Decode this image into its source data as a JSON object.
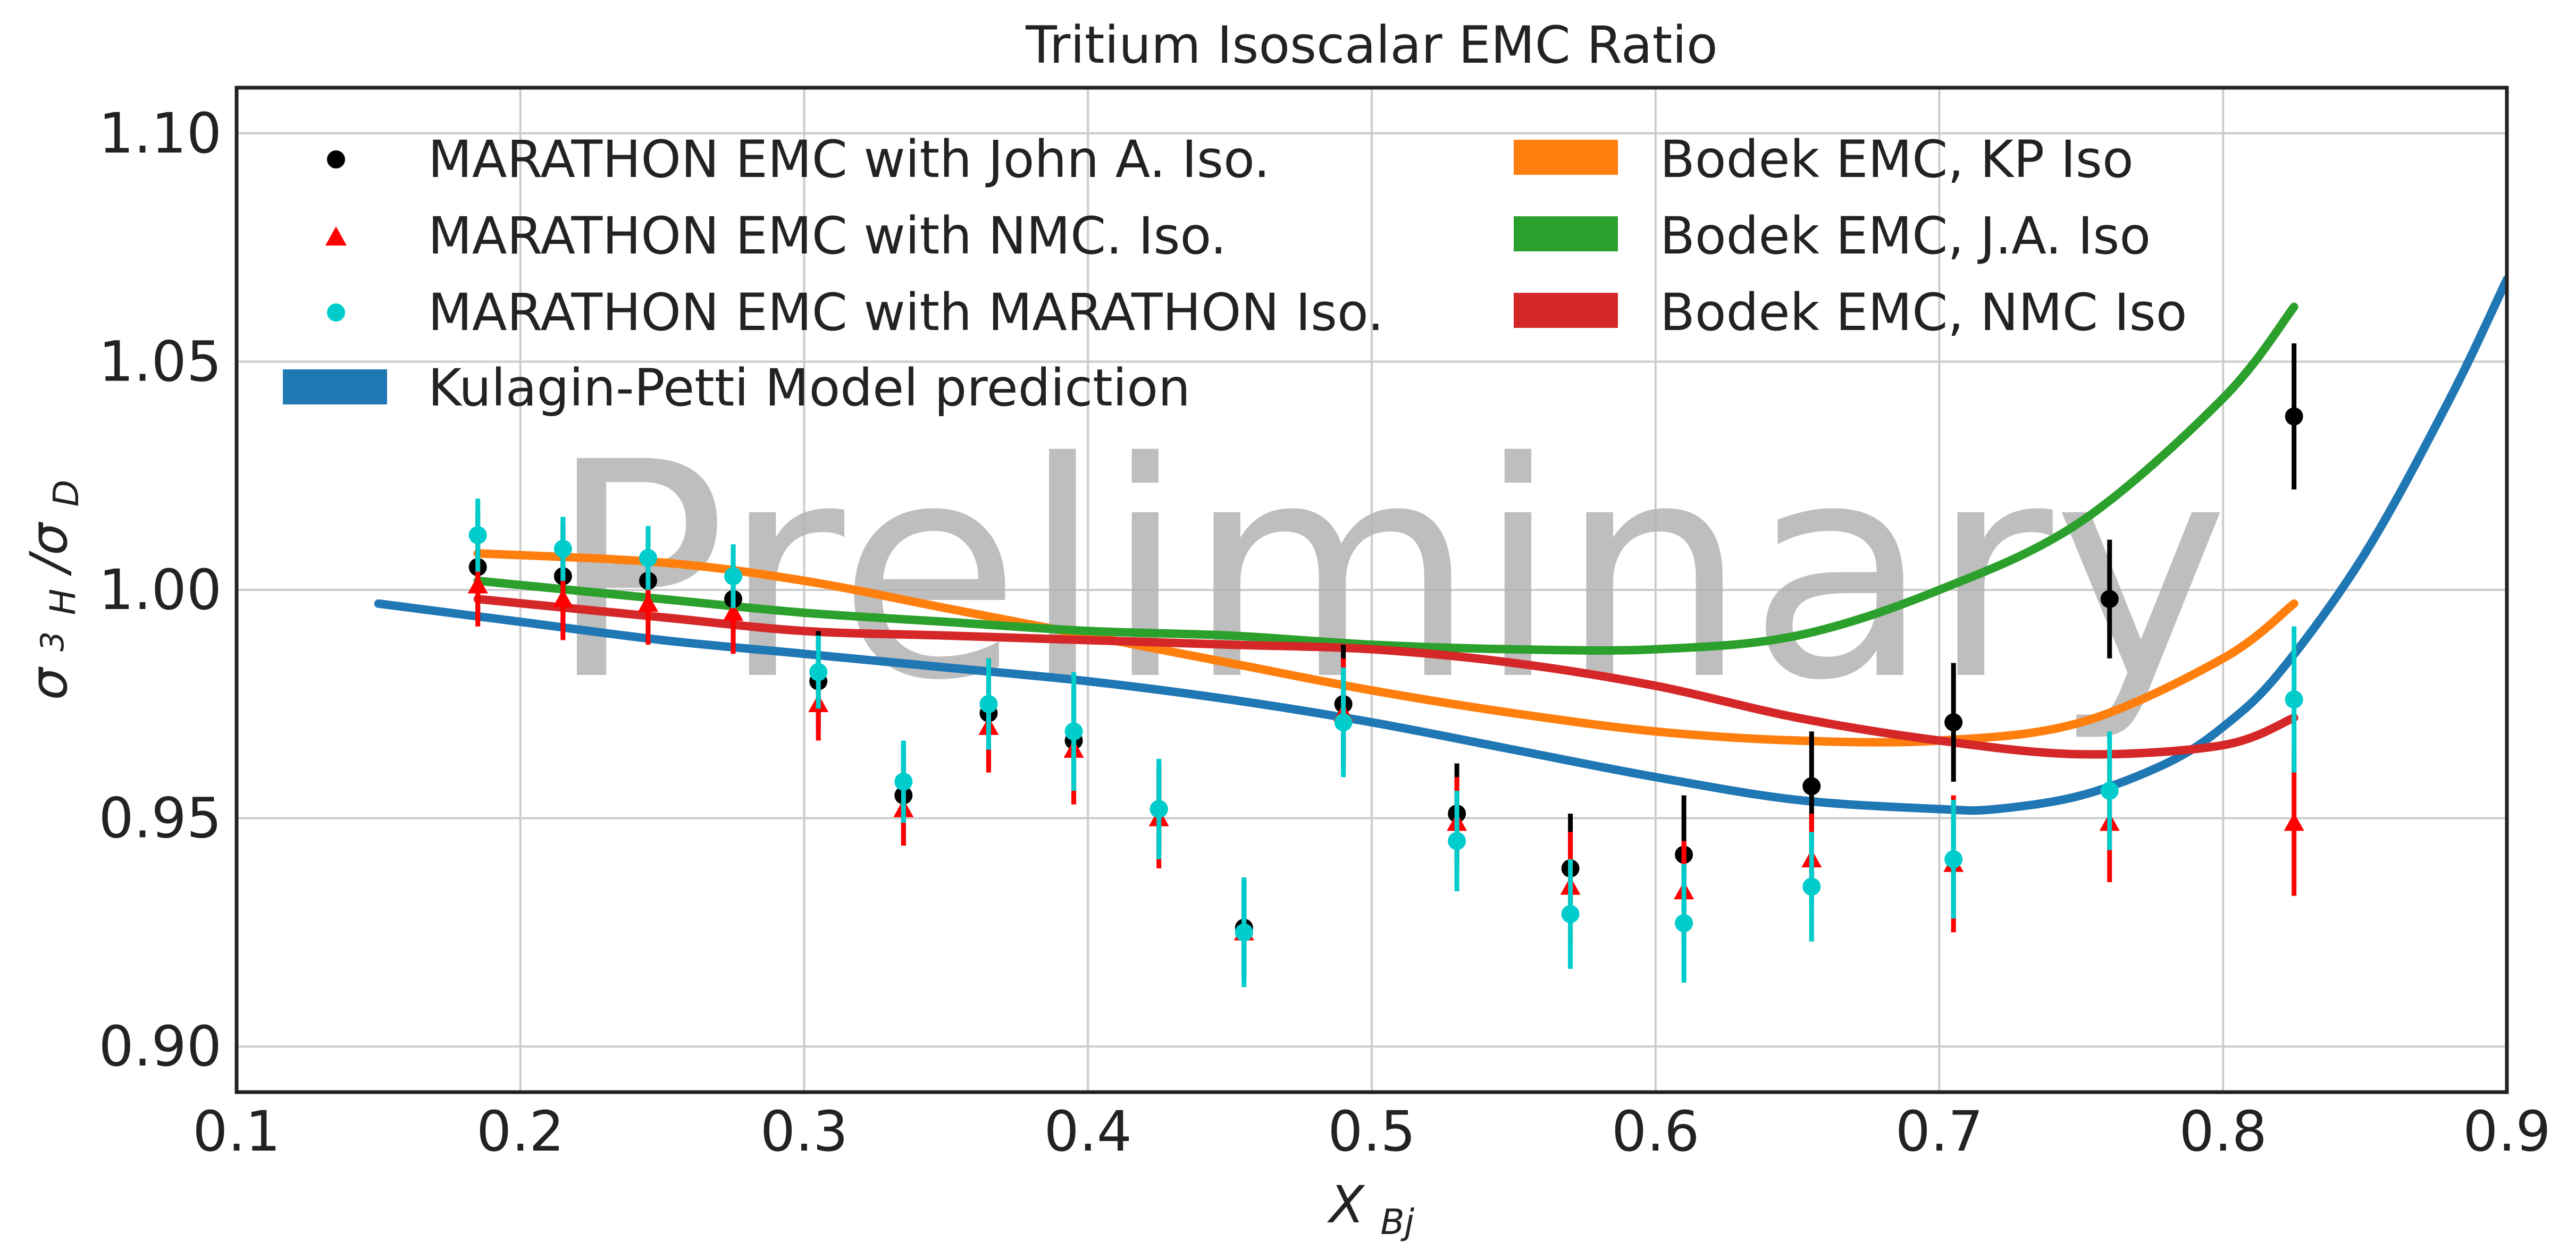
{
  "chart_data": {
    "type": "scatter",
    "title": "Tritium Isoscalar EMC Ratio",
    "xlabel": {
      "main": "X",
      "sub": "Bj"
    },
    "ylabel": {
      "sigma1": "σ",
      "sup": "3",
      "sub1": "H",
      "slash": "/σ",
      "sub2": "D"
    },
    "xlim": [
      0.1,
      0.9
    ],
    "ylim": [
      0.89,
      1.11
    ],
    "xticks": [
      0.1,
      0.2,
      0.3,
      0.4,
      0.5,
      0.6,
      0.7,
      0.8,
      0.9
    ],
    "xtick_labels": [
      "0.1",
      "0.2",
      "0.3",
      "0.4",
      "0.5",
      "0.6",
      "0.7",
      "0.8",
      "0.9"
    ],
    "yticks": [
      0.9,
      0.95,
      1.0,
      1.05,
      1.1
    ],
    "ytick_labels": [
      "0.90",
      "0.95",
      "1.00",
      "1.05",
      "1.10"
    ],
    "grid": true,
    "legend_position": "top",
    "watermark": "Preliminary",
    "point_series": [
      {
        "name": "MARATHON EMC with John A. Iso.",
        "marker": "circle",
        "color": "#000000",
        "error_color": "#000000",
        "x": [
          0.185,
          0.215,
          0.245,
          0.275,
          0.305,
          0.335,
          0.365,
          0.395,
          0.425,
          0.455,
          0.49,
          0.53,
          0.57,
          0.61,
          0.655,
          0.705,
          0.76,
          0.825
        ],
        "y": [
          1.005,
          1.003,
          1.002,
          0.998,
          0.98,
          0.955,
          0.973,
          0.967,
          0.952,
          0.926,
          0.975,
          0.951,
          0.939,
          0.942,
          0.957,
          0.971,
          0.998,
          1.038
        ],
        "yerr": [
          0.012,
          0.012,
          0.011,
          0.011,
          0.011,
          0.011,
          0.012,
          0.012,
          0.01,
          0.011,
          0.013,
          0.011,
          0.012,
          0.013,
          0.012,
          0.013,
          0.013,
          0.016
        ]
      },
      {
        "name": "MARATHON EMC with NMC. Iso.",
        "marker": "triangle",
        "color": "#ff0000",
        "error_color": "#ff0000",
        "x": [
          0.185,
          0.215,
          0.245,
          0.275,
          0.305,
          0.335,
          0.365,
          0.395,
          0.425,
          0.455,
          0.49,
          0.53,
          0.57,
          0.61,
          0.655,
          0.705,
          0.76,
          0.825
        ],
        "y": [
          1.001,
          0.998,
          0.997,
          0.995,
          0.975,
          0.952,
          0.97,
          0.965,
          0.95,
          0.925,
          0.973,
          0.949,
          0.935,
          0.934,
          0.941,
          0.94,
          0.949,
          0.949
        ],
        "yerr": [
          0.009,
          0.009,
          0.009,
          0.009,
          0.008,
          0.008,
          0.01,
          0.012,
          0.011,
          0.01,
          0.012,
          0.01,
          0.012,
          0.011,
          0.01,
          0.015,
          0.013,
          0.016
        ]
      },
      {
        "name": "MARATHON EMC with MARATHON Iso.",
        "marker": "circle",
        "color": "#00cccc",
        "error_color": "#00cccc",
        "x": [
          0.185,
          0.215,
          0.245,
          0.275,
          0.305,
          0.335,
          0.365,
          0.395,
          0.425,
          0.455,
          0.49,
          0.53,
          0.57,
          0.61,
          0.655,
          0.705,
          0.76,
          0.825
        ],
        "y": [
          1.012,
          1.009,
          1.007,
          1.003,
          0.982,
          0.958,
          0.975,
          0.969,
          0.952,
          0.925,
          0.971,
          0.945,
          0.929,
          0.927,
          0.935,
          0.941,
          0.956,
          0.976
        ],
        "yerr": [
          0.008,
          0.007,
          0.007,
          0.007,
          0.008,
          0.009,
          0.01,
          0.013,
          0.011,
          0.012,
          0.012,
          0.011,
          0.012,
          0.013,
          0.012,
          0.013,
          0.013,
          0.016
        ]
      }
    ],
    "line_series": [
      {
        "name": "Kulagin-Petti Model prediction",
        "color": "#1f77b4",
        "x": [
          0.15,
          0.2,
          0.25,
          0.3,
          0.35,
          0.4,
          0.45,
          0.5,
          0.55,
          0.6,
          0.65,
          0.7,
          0.72,
          0.75,
          0.78,
          0.8,
          0.82,
          0.85,
          0.88,
          0.9
        ],
        "y": [
          0.997,
          0.993,
          0.989,
          0.986,
          0.983,
          0.98,
          0.976,
          0.971,
          0.965,
          0.959,
          0.954,
          0.952,
          0.952,
          0.955,
          0.962,
          0.97,
          0.982,
          1.008,
          1.042,
          1.068
        ]
      },
      {
        "name": "Bodek EMC, KP Iso",
        "color": "#ff7f0e",
        "x": [
          0.185,
          0.25,
          0.3,
          0.35,
          0.4,
          0.45,
          0.5,
          0.55,
          0.6,
          0.65,
          0.7,
          0.75,
          0.8,
          0.825
        ],
        "y": [
          1.008,
          1.006,
          1.002,
          0.996,
          0.99,
          0.984,
          0.978,
          0.973,
          0.969,
          0.967,
          0.967,
          0.971,
          0.985,
          0.997
        ]
      },
      {
        "name": "Bodek EMC, J.A. Iso",
        "color": "#2ca02c",
        "x": [
          0.185,
          0.25,
          0.3,
          0.35,
          0.4,
          0.45,
          0.5,
          0.55,
          0.6,
          0.65,
          0.7,
          0.75,
          0.8,
          0.825
        ],
        "y": [
          1.002,
          0.998,
          0.995,
          0.993,
          0.991,
          0.99,
          0.988,
          0.987,
          0.987,
          0.99,
          1.0,
          1.015,
          1.042,
          1.062
        ]
      },
      {
        "name": "Bodek EMC, NMC Iso",
        "color": "#d62728",
        "x": [
          0.185,
          0.25,
          0.3,
          0.35,
          0.4,
          0.45,
          0.5,
          0.55,
          0.6,
          0.65,
          0.7,
          0.75,
          0.8,
          0.825
        ],
        "y": [
          0.998,
          0.994,
          0.991,
          0.99,
          0.989,
          0.988,
          0.987,
          0.984,
          0.979,
          0.972,
          0.967,
          0.964,
          0.966,
          0.972
        ]
      }
    ],
    "legend": {
      "col1": [
        "MARATHON EMC with John A. Iso.",
        "MARATHON EMC with NMC. Iso.",
        "MARATHON EMC with MARATHON Iso.",
        "Kulagin-Petti Model prediction"
      ],
      "col2": [
        "Bodek EMC, KP Iso",
        "Bodek EMC, J.A. Iso",
        "Bodek EMC, NMC Iso"
      ]
    }
  }
}
